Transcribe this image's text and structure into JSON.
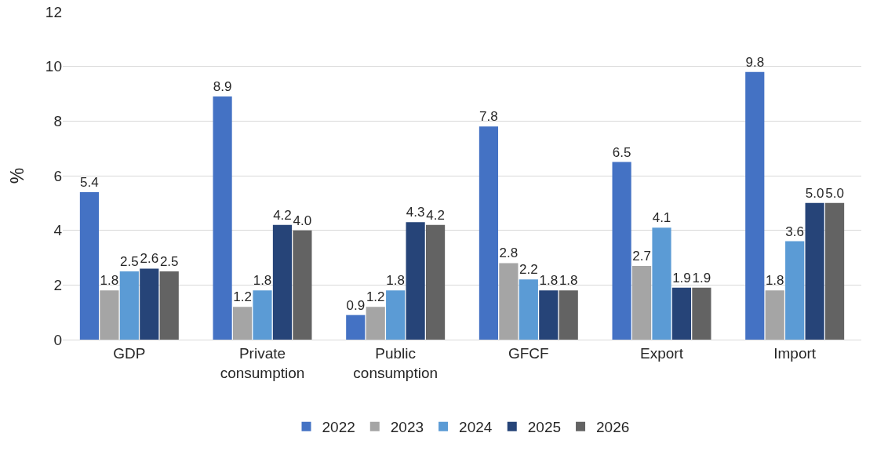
{
  "chart_data": {
    "type": "bar",
    "ylabel": "%",
    "categories": [
      "GDP",
      "Private consumption",
      "Public consumption",
      "GFCF",
      "Export",
      "Import"
    ],
    "series": [
      {
        "name": "2022",
        "color": "#4472c4",
        "values": [
          5.4,
          8.9,
          0.9,
          7.8,
          6.5,
          9.8
        ],
        "value_labels": [
          "5.4",
          "8.9",
          "0.9",
          "7.8",
          "6.5",
          "9.8"
        ]
      },
      {
        "name": "2023",
        "color": "#a5a5a5",
        "values": [
          1.8,
          1.2,
          1.2,
          2.8,
          2.7,
          1.8
        ],
        "value_labels": [
          "1.8",
          "1.2",
          "1.2",
          "2.8",
          "2.7",
          "1.8"
        ]
      },
      {
        "name": "2024",
        "color": "#5b9bd5",
        "values": [
          2.5,
          1.8,
          1.8,
          2.2,
          4.1,
          3.6
        ],
        "value_labels": [
          "2.5",
          "1.8",
          "1.8",
          "2.2",
          "4.1",
          "3.6"
        ]
      },
      {
        "name": "2025",
        "color": "#264478",
        "values": [
          2.6,
          4.2,
          4.3,
          1.8,
          1.9,
          5.0
        ],
        "value_labels": [
          "2.6",
          "4.2",
          "4.3",
          "1.8",
          "1.9",
          "5.0"
        ]
      },
      {
        "name": "2026",
        "color": "#636363",
        "values": [
          2.5,
          4.0,
          4.2,
          1.8,
          1.9,
          5.0
        ],
        "value_labels": [
          "2.5",
          "4.0",
          "4.2",
          "1.8",
          "1.9",
          "5.0"
        ]
      }
    ],
    "ylim": [
      0,
      12
    ],
    "yticks": [
      0,
      2,
      4,
      6,
      8,
      10,
      12
    ],
    "grid": "y",
    "legend": "bottom"
  }
}
